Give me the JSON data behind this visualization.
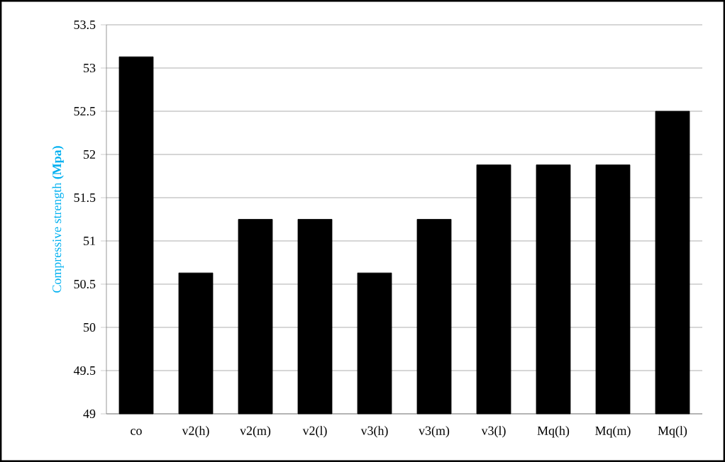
{
  "chart_data": {
    "type": "bar",
    "ylabel": "Compressive strength **(Mpa)**",
    "categories": [
      "co",
      "v2(h)",
      "v2(m)",
      "v2(l)",
      "v3(h)",
      "v3(m)",
      "v3(l)",
      "Mq(h)",
      "Mq(m)",
      "Mq(l)"
    ],
    "values": [
      53.13,
      50.63,
      51.25,
      51.25,
      50.63,
      51.25,
      51.88,
      51.88,
      51.88,
      52.5
    ],
    "color": "#000000",
    "ylim": [
      49,
      53.5
    ],
    "yticks": [
      49,
      49.5,
      50,
      50.5,
      51,
      51.5,
      52,
      52.5,
      53,
      53.5
    ],
    "grid": "y"
  }
}
